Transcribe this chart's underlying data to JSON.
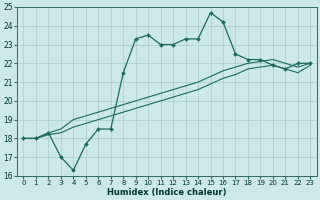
{
  "xlabel": "Humidex (Indice chaleur)",
  "xlim": [
    -0.5,
    23.5
  ],
  "ylim": [
    16,
    25
  ],
  "yticks": [
    16,
    17,
    18,
    19,
    20,
    21,
    22,
    23,
    24,
    25
  ],
  "xticks": [
    0,
    1,
    2,
    3,
    4,
    5,
    6,
    7,
    8,
    9,
    10,
    11,
    12,
    13,
    14,
    15,
    16,
    17,
    18,
    19,
    20,
    21,
    22,
    23
  ],
  "bg_color": "#cce8e8",
  "grid_color": "#aacccc",
  "line_color": "#1a6b5a",
  "line1_x": [
    0,
    1,
    2,
    3,
    4,
    5,
    6,
    7,
    8,
    9,
    10,
    11,
    12,
    13,
    14,
    15,
    16,
    17,
    18,
    19,
    20,
    21,
    22,
    23
  ],
  "line1_y": [
    18.0,
    18.0,
    18.3,
    17.0,
    16.3,
    17.7,
    18.5,
    18.5,
    21.5,
    23.3,
    23.5,
    23.0,
    23.0,
    23.3,
    23.3,
    24.7,
    24.2,
    22.5,
    22.2,
    22.2,
    21.9,
    21.7,
    22.0,
    22.0
  ],
  "line2_x": [
    0,
    1,
    2,
    3,
    4,
    5,
    6,
    7,
    8,
    9,
    10,
    11,
    12,
    13,
    14,
    15,
    16,
    17,
    18,
    19,
    20,
    21,
    22,
    23
  ],
  "line2_y": [
    18.0,
    18.0,
    18.3,
    18.5,
    19.0,
    19.2,
    19.4,
    19.6,
    19.8,
    20.0,
    20.2,
    20.4,
    20.6,
    20.8,
    21.0,
    21.3,
    21.6,
    21.8,
    22.0,
    22.1,
    22.2,
    22.0,
    21.8,
    22.0
  ],
  "line3_x": [
    0,
    1,
    2,
    3,
    4,
    5,
    6,
    7,
    8,
    9,
    10,
    11,
    12,
    13,
    14,
    15,
    16,
    17,
    18,
    19,
    20,
    21,
    22,
    23
  ],
  "line3_y": [
    18.0,
    18.0,
    18.2,
    18.3,
    18.6,
    18.8,
    19.0,
    19.2,
    19.4,
    19.6,
    19.8,
    20.0,
    20.2,
    20.4,
    20.6,
    20.9,
    21.2,
    21.4,
    21.7,
    21.8,
    21.9,
    21.7,
    21.5,
    21.9
  ]
}
